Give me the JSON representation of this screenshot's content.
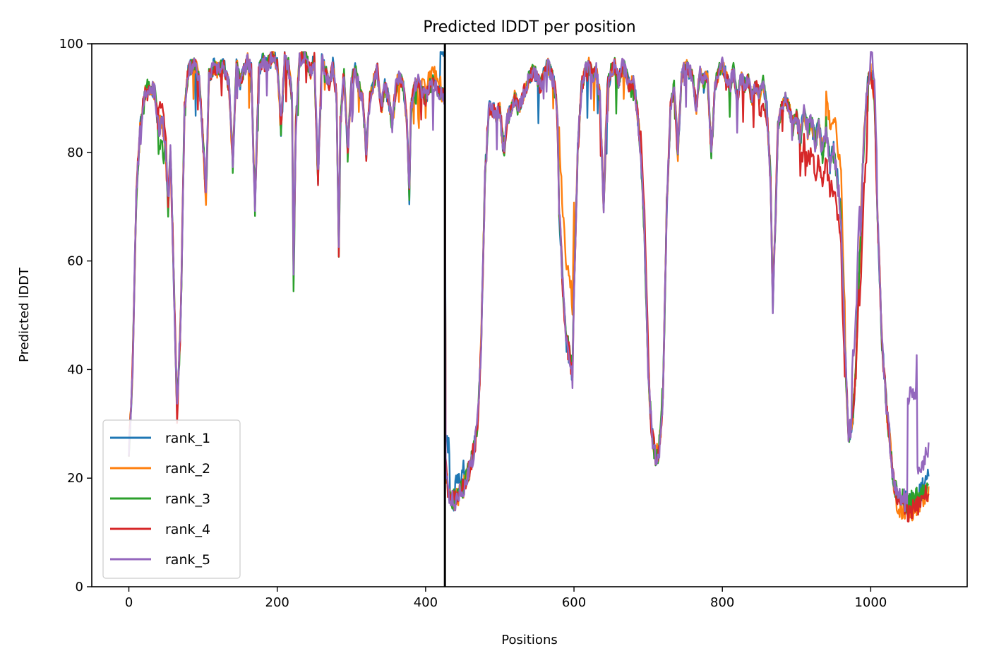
{
  "chart_data": {
    "type": "line",
    "title": "Predicted lDDT per position",
    "xlabel": "Positions",
    "ylabel": "Predicted lDDT",
    "xlim": [
      -50,
      1130
    ],
    "ylim": [
      0,
      100
    ],
    "xticks": [
      0,
      200,
      400,
      600,
      800,
      1000
    ],
    "yticks": [
      0,
      20,
      40,
      60,
      80,
      100
    ],
    "grid": false,
    "legend_position": "lower-left",
    "chain_break_x": 426,
    "x_max": 1078,
    "base_profile": [
      [
        0,
        25
      ],
      [
        5,
        40
      ],
      [
        10,
        72
      ],
      [
        15,
        84
      ],
      [
        20,
        90
      ],
      [
        25,
        92
      ],
      [
        30,
        92
      ],
      [
        35,
        91
      ],
      [
        40,
        84
      ],
      [
        45,
        86
      ],
      [
        50,
        80
      ],
      [
        53,
        70
      ],
      [
        56,
        80
      ],
      [
        60,
        60
      ],
      [
        65,
        32
      ],
      [
        70,
        50
      ],
      [
        75,
        88
      ],
      [
        80,
        95
      ],
      [
        85,
        96
      ],
      [
        90,
        96
      ],
      [
        95,
        93
      ],
      [
        100,
        82
      ],
      [
        104,
        72
      ],
      [
        108,
        94
      ],
      [
        115,
        96
      ],
      [
        120,
        95
      ],
      [
        128,
        96
      ],
      [
        135,
        92
      ],
      [
        140,
        78
      ],
      [
        145,
        96
      ],
      [
        150,
        93
      ],
      [
        155,
        95
      ],
      [
        160,
        97
      ],
      [
        165,
        95
      ],
      [
        170,
        70
      ],
      [
        175,
        95
      ],
      [
        180,
        97
      ],
      [
        185,
        96
      ],
      [
        190,
        97
      ],
      [
        195,
        98
      ],
      [
        200,
        96
      ],
      [
        205,
        85
      ],
      [
        210,
        97
      ],
      [
        215,
        96
      ],
      [
        220,
        90
      ],
      [
        222,
        58
      ],
      [
        225,
        85
      ],
      [
        230,
        97
      ],
      [
        235,
        98
      ],
      [
        240,
        97
      ],
      [
        245,
        95
      ],
      [
        250,
        97
      ],
      [
        255,
        75
      ],
      [
        260,
        97
      ],
      [
        265,
        95
      ],
      [
        270,
        92
      ],
      [
        275,
        96
      ],
      [
        280,
        90
      ],
      [
        283,
        62
      ],
      [
        285,
        85
      ],
      [
        290,
        95
      ],
      [
        295,
        80
      ],
      [
        300,
        93
      ],
      [
        305,
        95
      ],
      [
        310,
        92
      ],
      [
        315,
        90
      ],
      [
        320,
        80
      ],
      [
        325,
        90
      ],
      [
        330,
        93
      ],
      [
        335,
        95
      ],
      [
        340,
        88
      ],
      [
        345,
        92
      ],
      [
        350,
        90
      ],
      [
        355,
        85
      ],
      [
        360,
        92
      ],
      [
        365,
        94
      ],
      [
        370,
        92
      ],
      [
        375,
        85
      ],
      [
        378,
        72
      ],
      [
        380,
        88
      ],
      [
        385,
        92
      ],
      [
        390,
        93
      ],
      [
        395,
        91
      ],
      [
        400,
        90
      ],
      [
        405,
        92
      ],
      [
        410,
        93
      ],
      [
        415,
        92
      ],
      [
        420,
        91
      ],
      [
        426,
        90
      ],
      [
        427,
        22
      ],
      [
        430,
        18
      ],
      [
        435,
        16
      ],
      [
        440,
        16
      ],
      [
        445,
        17
      ],
      [
        450,
        18
      ],
      [
        455,
        20
      ],
      [
        460,
        22
      ],
      [
        465,
        25
      ],
      [
        470,
        30
      ],
      [
        475,
        45
      ],
      [
        480,
        75
      ],
      [
        485,
        88
      ],
      [
        490,
        88
      ],
      [
        495,
        87
      ],
      [
        500,
        88
      ],
      [
        505,
        80
      ],
      [
        510,
        86
      ],
      [
        515,
        88
      ],
      [
        520,
        90
      ],
      [
        525,
        88
      ],
      [
        530,
        90
      ],
      [
        535,
        92
      ],
      [
        540,
        94
      ],
      [
        545,
        95
      ],
      [
        550,
        94
      ],
      [
        555,
        92
      ],
      [
        560,
        95
      ],
      [
        565,
        96
      ],
      [
        570,
        94
      ],
      [
        575,
        92
      ],
      [
        578,
        85
      ],
      [
        580,
        70
      ],
      [
        585,
        55
      ],
      [
        590,
        45
      ],
      [
        595,
        42
      ],
      [
        598,
        38
      ],
      [
        600,
        55
      ],
      [
        605,
        80
      ],
      [
        610,
        92
      ],
      [
        615,
        95
      ],
      [
        620,
        96
      ],
      [
        625,
        94
      ],
      [
        630,
        95
      ],
      [
        635,
        90
      ],
      [
        640,
        70
      ],
      [
        645,
        92
      ],
      [
        650,
        95
      ],
      [
        655,
        96
      ],
      [
        660,
        93
      ],
      [
        665,
        96
      ],
      [
        670,
        95
      ],
      [
        675,
        92
      ],
      [
        680,
        93
      ],
      [
        685,
        88
      ],
      [
        690,
        80
      ],
      [
        695,
        65
      ],
      [
        700,
        40
      ],
      [
        705,
        28
      ],
      [
        710,
        24
      ],
      [
        715,
        25
      ],
      [
        720,
        35
      ],
      [
        725,
        70
      ],
      [
        730,
        88
      ],
      [
        735,
        92
      ],
      [
        740,
        80
      ],
      [
        745,
        94
      ],
      [
        750,
        96
      ],
      [
        755,
        95
      ],
      [
        760,
        94
      ],
      [
        765,
        88
      ],
      [
        770,
        95
      ],
      [
        775,
        93
      ],
      [
        780,
        94
      ],
      [
        785,
        80
      ],
      [
        790,
        92
      ],
      [
        795,
        95
      ],
      [
        800,
        96
      ],
      [
        805,
        94
      ],
      [
        810,
        92
      ],
      [
        815,
        95
      ],
      [
        820,
        90
      ],
      [
        825,
        94
      ],
      [
        830,
        92
      ],
      [
        835,
        93
      ],
      [
        840,
        90
      ],
      [
        845,
        92
      ],
      [
        850,
        91
      ],
      [
        855,
        93
      ],
      [
        860,
        88
      ],
      [
        865,
        75
      ],
      [
        868,
        52
      ],
      [
        872,
        70
      ],
      [
        875,
        85
      ],
      [
        880,
        88
      ],
      [
        885,
        90
      ],
      [
        890,
        88
      ],
      [
        895,
        85
      ],
      [
        900,
        87
      ],
      [
        905,
        82
      ],
      [
        910,
        88
      ],
      [
        915,
        84
      ],
      [
        920,
        86
      ],
      [
        925,
        82
      ],
      [
        930,
        85
      ],
      [
        935,
        80
      ],
      [
        940,
        85
      ],
      [
        945,
        78
      ],
      [
        950,
        80
      ],
      [
        955,
        75
      ],
      [
        960,
        68
      ],
      [
        965,
        45
      ],
      [
        970,
        28
      ],
      [
        975,
        30
      ],
      [
        980,
        40
      ],
      [
        985,
        60
      ],
      [
        990,
        80
      ],
      [
        995,
        92
      ],
      [
        1000,
        95
      ],
      [
        1005,
        90
      ],
      [
        1010,
        65
      ],
      [
        1015,
        45
      ],
      [
        1020,
        35
      ],
      [
        1025,
        28
      ],
      [
        1030,
        20
      ],
      [
        1035,
        17
      ],
      [
        1040,
        16
      ],
      [
        1045,
        16
      ],
      [
        1050,
        15
      ],
      [
        1055,
        16
      ],
      [
        1060,
        16
      ],
      [
        1065,
        17
      ],
      [
        1070,
        18
      ],
      [
        1075,
        19
      ],
      [
        1078,
        20
      ]
    ],
    "series": [
      {
        "name": "rank_1",
        "color": "#1f77b4",
        "seed": 11,
        "bias": [
          [
            420,
            432,
            8
          ],
          [
            440,
            452,
            3
          ]
        ]
      },
      {
        "name": "rank_2",
        "color": "#ff7f0e",
        "seed": 23,
        "bias": [
          [
            580,
            600,
            14
          ],
          [
            940,
            965,
            7
          ],
          [
            1035,
            1078,
            -2
          ],
          [
            395,
            420,
            2
          ]
        ]
      },
      {
        "name": "rank_3",
        "color": "#2ca02c",
        "seed": 37,
        "bias": [
          [
            40,
            48,
            -4
          ],
          [
            220,
            224,
            -2
          ],
          [
            283,
            285,
            -2
          ],
          [
            590,
            598,
            2
          ],
          [
            715,
            720,
            2
          ]
        ]
      },
      {
        "name": "rank_4",
        "color": "#d62728",
        "seed": 51,
        "bias": [
          [
            40,
            50,
            4
          ],
          [
            690,
            700,
            4
          ],
          [
            850,
            860,
            -4
          ],
          [
            905,
            965,
            -6
          ],
          [
            985,
            995,
            -10
          ],
          [
            1040,
            1078,
            -2
          ]
        ]
      },
      {
        "name": "rank_5",
        "color": "#9467bd",
        "seed": 67,
        "bias": [
          [
            1050,
            1062,
            20
          ],
          [
            1062,
            1078,
            5
          ],
          [
            975,
            985,
            10
          ],
          [
            1000,
            1008,
            4
          ]
        ]
      }
    ]
  }
}
